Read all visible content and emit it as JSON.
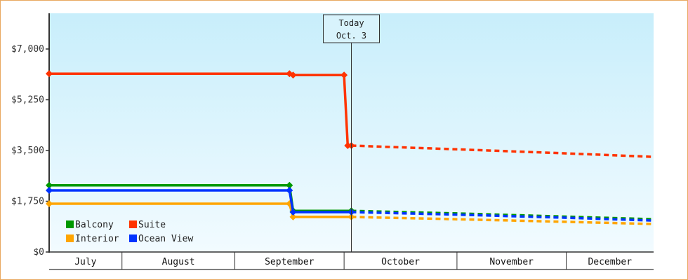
{
  "chart_data": {
    "type": "line",
    "title": "",
    "xlabel": "",
    "ylabel": "",
    "xlim": [
      "07-12",
      "12-25"
    ],
    "ylim": [
      0,
      8000
    ],
    "yticks": [
      0,
      1750,
      3500,
      5250,
      7000
    ],
    "ytick_labels": [
      "$0",
      "$1,750",
      "$3,500",
      "$5,250",
      "$7,000"
    ],
    "months": [
      {
        "label": "July",
        "start": "07-12",
        "end": "08-01"
      },
      {
        "label": "August",
        "start": "08-01",
        "end": "09-01"
      },
      {
        "label": "September",
        "start": "09-01",
        "end": "10-01"
      },
      {
        "label": "October",
        "start": "10-01",
        "end": "11-01"
      },
      {
        "label": "November",
        "start": "11-01",
        "end": "12-01"
      },
      {
        "label": "December",
        "start": "12-01",
        "end": "12-25"
      }
    ],
    "today": {
      "label": "Today",
      "date_label": "Oct. 3",
      "date": "10-03"
    },
    "legend_position": "bottom-left",
    "series": [
      {
        "name": "Balcony",
        "color": "#009900",
        "actual": [
          [
            "07-12",
            2300
          ],
          [
            "09-16",
            2300
          ],
          [
            "09-17",
            1420
          ],
          [
            "10-03",
            1420
          ]
        ],
        "forecast": [
          [
            "10-03",
            1420
          ],
          [
            "11-01",
            1330
          ],
          [
            "12-01",
            1220
          ],
          [
            "12-25",
            1130
          ]
        ]
      },
      {
        "name": "Suite",
        "color": "#ff3300",
        "actual": [
          [
            "07-12",
            6150
          ],
          [
            "09-16",
            6150
          ],
          [
            "09-17",
            6100
          ],
          [
            "10-01",
            6100
          ],
          [
            "10-02",
            3670
          ],
          [
            "10-03",
            3670
          ]
        ],
        "forecast": [
          [
            "10-03",
            3670
          ],
          [
            "11-01",
            3540
          ],
          [
            "12-01",
            3400
          ],
          [
            "12-25",
            3280
          ]
        ]
      },
      {
        "name": "Interior",
        "color": "#ffa500",
        "actual": [
          [
            "07-12",
            1665
          ],
          [
            "09-16",
            1665
          ],
          [
            "09-17",
            1210
          ],
          [
            "10-03",
            1210
          ]
        ],
        "forecast": [
          [
            "10-03",
            1210
          ],
          [
            "11-01",
            1130
          ],
          [
            "12-01",
            1040
          ],
          [
            "12-25",
            965
          ]
        ]
      },
      {
        "name": "Ocean View",
        "color": "#0033ff",
        "actual": [
          [
            "07-12",
            2125
          ],
          [
            "09-16",
            2125
          ],
          [
            "09-17",
            1375
          ],
          [
            "10-03",
            1375
          ]
        ],
        "forecast": [
          [
            "10-03",
            1375
          ],
          [
            "11-01",
            1290
          ],
          [
            "12-01",
            1180
          ],
          [
            "12-25",
            1085
          ]
        ]
      }
    ]
  }
}
